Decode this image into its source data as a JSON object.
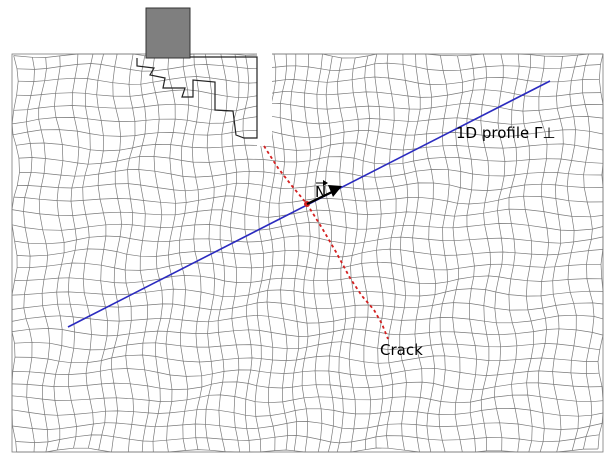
{
  "labels": {
    "profile": "1D profile Γ⊥",
    "normal": "N",
    "crack": "Crack"
  },
  "colors": {
    "mesh": "#7a7a7a",
    "profile_line": "#2b2bbf",
    "crack": "#d42020",
    "normal_arrow": "#000000",
    "indenter_fill": "#7f7f7f",
    "indenter_edge": "#333333"
  }
}
